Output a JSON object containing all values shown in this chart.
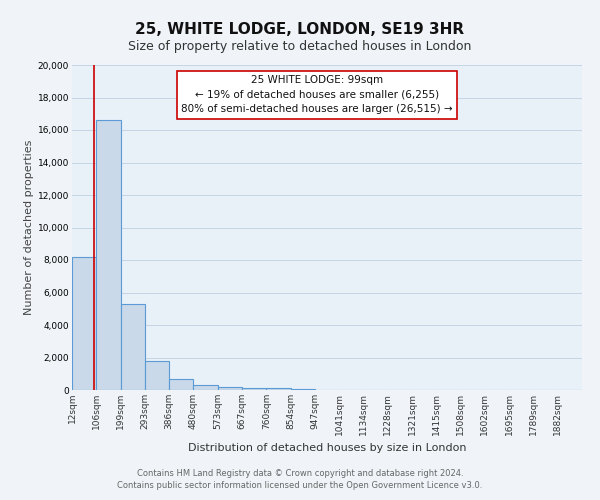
{
  "title": "25, WHITE LODGE, LONDON, SE19 3HR",
  "subtitle": "Size of property relative to detached houses in London",
  "xlabel": "Distribution of detached houses by size in London",
  "ylabel": "Number of detached properties",
  "bin_labels": [
    "12sqm",
    "106sqm",
    "199sqm",
    "293sqm",
    "386sqm",
    "480sqm",
    "573sqm",
    "667sqm",
    "760sqm",
    "854sqm",
    "947sqm",
    "1041sqm",
    "1134sqm",
    "1228sqm",
    "1321sqm",
    "1415sqm",
    "1508sqm",
    "1602sqm",
    "1695sqm",
    "1789sqm",
    "1882sqm"
  ],
  "bar_heights": [
    8200,
    16600,
    5300,
    1800,
    700,
    300,
    200,
    150,
    100,
    50,
    30,
    20,
    15,
    10,
    8,
    5,
    4,
    3,
    2,
    2,
    0
  ],
  "bar_color": "#c9d9ea",
  "bar_edge_color": "#5b9bd5",
  "bar_edge_width": 0.8,
  "red_line_color": "#cc0000",
  "ylim": [
    0,
    20000
  ],
  "yticks": [
    0,
    2000,
    4000,
    6000,
    8000,
    10000,
    12000,
    14000,
    16000,
    18000,
    20000
  ],
  "annotation_title": "25 WHITE LODGE: 99sqm",
  "annotation_line1": "← 19% of detached houses are smaller (6,255)",
  "annotation_line2": "80% of semi-detached houses are larger (26,515) →",
  "annotation_box_color": "#ffffff",
  "annotation_box_edge_color": "#cc0000",
  "footer_line1": "Contains HM Land Registry data © Crown copyright and database right 2024.",
  "footer_line2": "Contains public sector information licensed under the Open Government Licence v3.0.",
  "plot_bg_color": "#e8f0f8",
  "fig_bg_color": "#f0f4f8",
  "grid_color": "#c5d5e5",
  "title_fontsize": 11,
  "subtitle_fontsize": 9,
  "axis_label_fontsize": 8,
  "tick_fontsize": 6.5,
  "footer_fontsize": 6,
  "annotation_fontsize": 7.5
}
